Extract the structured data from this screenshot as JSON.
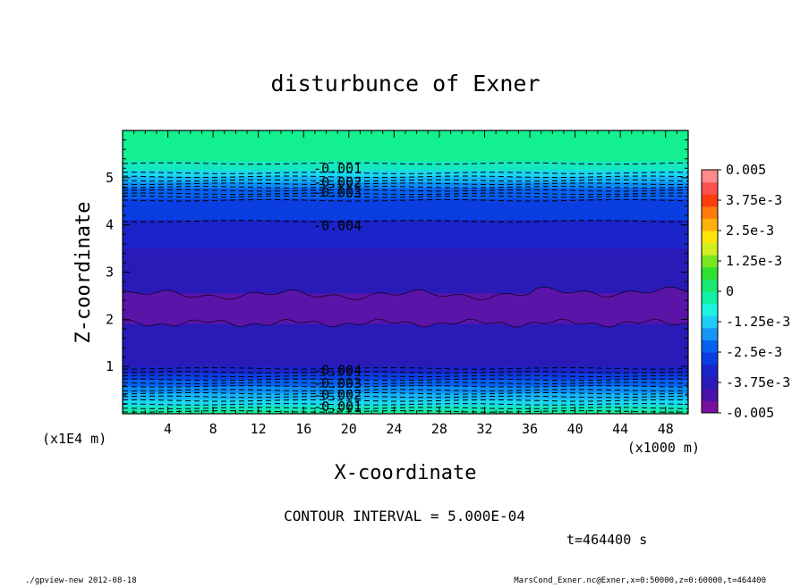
{
  "chart_data": {
    "type": "contour",
    "title": "disturbunce of Exner",
    "xlabel": "X-coordinate",
    "ylabel": "Z-coordinate",
    "x_unit": "(x1000 m)",
    "y_unit": "(x1E4 m)",
    "xlim": [
      0,
      50
    ],
    "ylim": [
      0,
      6
    ],
    "x_ticks": [
      4,
      8,
      12,
      16,
      20,
      24,
      28,
      32,
      36,
      40,
      44,
      48
    ],
    "y_ticks": [
      1,
      2,
      3,
      4,
      5
    ],
    "contour_interval_text": "CONTOUR INTERVAL = 5.000E-04",
    "time_text": "t=464400 s",
    "footer_left": "./gpview-new  2012-08-18",
    "footer_right": "MarsCond_Exner.nc@Exner,x=0:50000,z=0:60000,t=464400",
    "contour_labels": [
      {
        "text": "-0.001",
        "x": 19,
        "z": 5.2
      },
      {
        "text": "-0.002",
        "x": 19,
        "z": 4.9
      },
      {
        "text": "-0.003",
        "x": 19,
        "z": 4.68
      },
      {
        "text": "-0.004",
        "x": 19,
        "z": 3.98
      },
      {
        "text": "-0.004",
        "x": 19,
        "z": 0.92
      },
      {
        "text": "-0.003",
        "x": 19,
        "z": 0.64
      },
      {
        "text": "-0.002",
        "x": 19,
        "z": 0.4
      },
      {
        "text": "-0.001",
        "x": 19,
        "z": 0.15
      }
    ],
    "colorbar": {
      "min": -0.005,
      "max": 0.005,
      "tick_labels": [
        "0.005",
        "3.75e-3",
        "2.5e-3",
        "1.25e-3",
        "0",
        "-1.25e-3",
        "-2.5e-3",
        "-3.75e-3",
        "-0.005"
      ],
      "colors": [
        "#7a10a0",
        "#4a12a8",
        "#2a1ab8",
        "#1a24c8",
        "#0a3ee0",
        "#0660f0",
        "#1496f8",
        "#1eccf8",
        "#1ef2e2",
        "#12f0a8",
        "#18e870",
        "#30e030",
        "#7ae820",
        "#d2ee20",
        "#fee60a",
        "#ffb00a",
        "#ff7a0a",
        "#ff3c0a",
        "#ff5050",
        "#ff8a8a"
      ]
    },
    "layers": [
      {
        "z0": 5.35,
        "z1": 6.0,
        "color": "#12f090"
      },
      {
        "z0": 5.15,
        "z1": 5.35,
        "color": "#14e8c0"
      },
      {
        "z0": 5.02,
        "z1": 5.15,
        "color": "#1ad8f0"
      },
      {
        "z0": 4.9,
        "z1": 5.02,
        "color": "#14b4f8"
      },
      {
        "z0": 4.78,
        "z1": 4.9,
        "color": "#0a8cf8"
      },
      {
        "z0": 4.55,
        "z1": 4.78,
        "color": "#0660f0"
      },
      {
        "z0": 4.1,
        "z1": 4.55,
        "color": "#0a3ee0"
      },
      {
        "z0": 3.5,
        "z1": 4.1,
        "color": "#1a24c8"
      },
      {
        "z0": 2.55,
        "z1": 3.5,
        "color": "#2a1ab8"
      },
      {
        "z0": 1.9,
        "z1": 2.55,
        "color": "#5a14a8"
      },
      {
        "z0": 1.0,
        "z1": 1.9,
        "color": "#2a1ab8"
      },
      {
        "z0": 0.85,
        "z1": 1.0,
        "color": "#1a24c8"
      },
      {
        "z0": 0.72,
        "z1": 0.85,
        "color": "#0a3ee0"
      },
      {
        "z0": 0.58,
        "z1": 0.72,
        "color": "#0660f0"
      },
      {
        "z0": 0.44,
        "z1": 0.58,
        "color": "#0a8cf8"
      },
      {
        "z0": 0.3,
        "z1": 0.44,
        "color": "#14b4f8"
      },
      {
        "z0": 0.17,
        "z1": 0.3,
        "color": "#1ad8f0"
      },
      {
        "z0": 0.06,
        "z1": 0.17,
        "color": "#14e8c0"
      },
      {
        "z0": 0.0,
        "z1": 0.06,
        "color": "#12f090"
      }
    ],
    "dashed_levels": [
      5.3,
      5.1,
      5.02,
      4.94,
      4.87,
      4.8,
      4.73,
      4.66,
      4.6,
      4.52,
      4.08,
      0.96,
      0.88,
      0.8,
      0.72,
      0.65,
      0.58,
      0.5,
      0.43,
      0.36,
      0.28,
      0.2,
      0.12,
      0.05
    ]
  }
}
